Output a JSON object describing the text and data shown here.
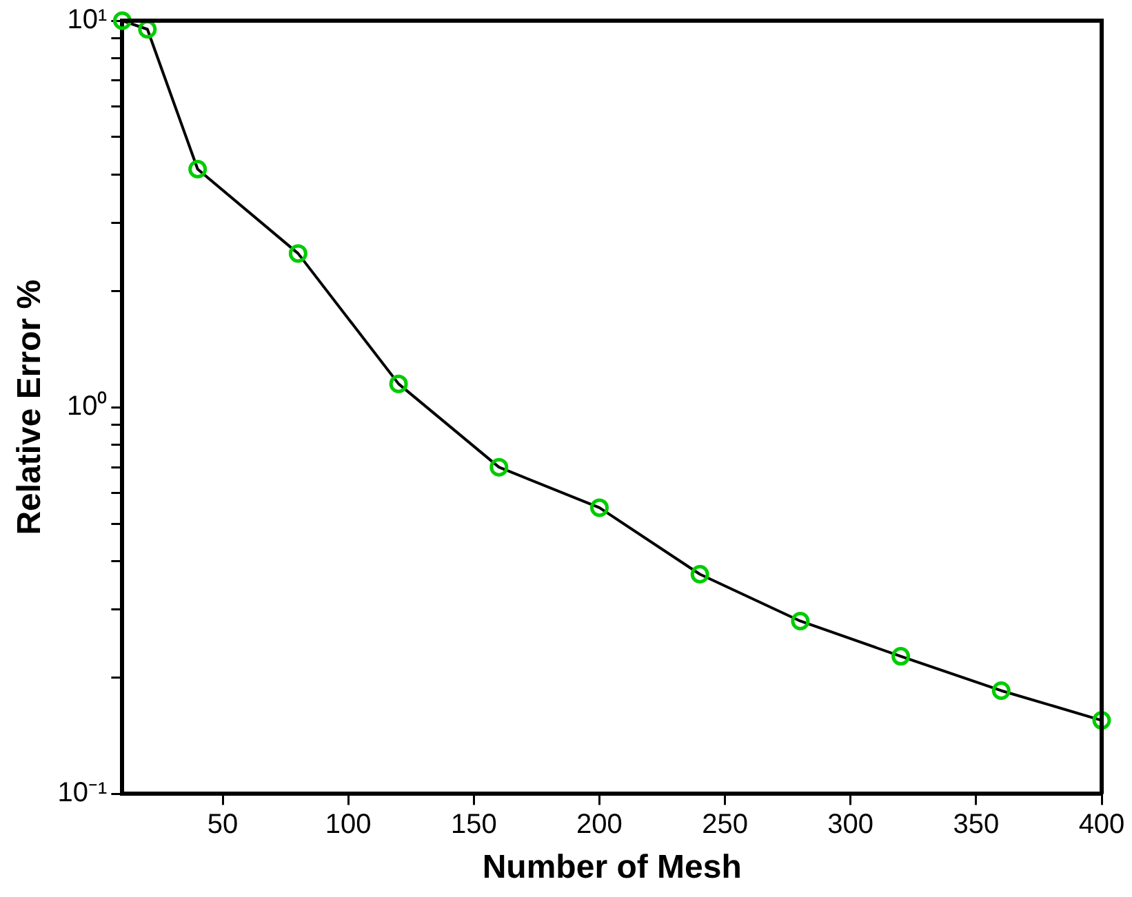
{
  "chart_data": {
    "type": "line",
    "xlabel": "Number of Mesh",
    "ylabel": "Relative Error %",
    "x": [
      10,
      20,
      40,
      80,
      120,
      160,
      200,
      240,
      280,
      320,
      360,
      400
    ],
    "series": [
      {
        "color": "#000000",
        "values": [
          10,
          9.5,
          4.13,
          2.5,
          1.15,
          0.7,
          0.55,
          0.37,
          0.28,
          0.227,
          0.185,
          0.155
        ]
      },
      {
        "type": "scatter",
        "marker": "circle",
        "color": "#00cc00",
        "values": [
          10,
          9.5,
          4.13,
          2.5,
          1.15,
          0.7,
          0.55,
          0.37,
          0.28,
          0.227,
          0.185,
          0.155
        ]
      }
    ],
    "xlim": [
      10,
      400
    ],
    "xticks": [
      50,
      100,
      150,
      200,
      250,
      300,
      350,
      400
    ],
    "ylim": [
      0.1,
      10
    ],
    "yticks": [
      {
        "value": 0.1,
        "label": "10⁻¹"
      },
      {
        "value": 0.2,
        "label": null
      },
      {
        "value": 0.3,
        "label": null
      },
      {
        "value": 0.4,
        "label": null
      },
      {
        "value": 0.5,
        "label": null
      },
      {
        "value": 0.6,
        "label": null
      },
      {
        "value": 0.7,
        "label": null
      },
      {
        "value": 0.8,
        "label": null
      },
      {
        "value": 0.9,
        "label": null
      },
      {
        "value": 1,
        "label": "10⁰"
      },
      {
        "value": 2,
        "label": null
      },
      {
        "value": 3,
        "label": null
      },
      {
        "value": 4,
        "label": null
      },
      {
        "value": 5,
        "label": null
      },
      {
        "value": 6,
        "label": null
      },
      {
        "value": 7,
        "label": null
      },
      {
        "value": 8,
        "label": null
      },
      {
        "value": 9,
        "label": null
      },
      {
        "value": 10,
        "label": "10¹"
      }
    ],
    "log": "y",
    "grid": false,
    "legend": false,
    "line_style": "solid"
  }
}
